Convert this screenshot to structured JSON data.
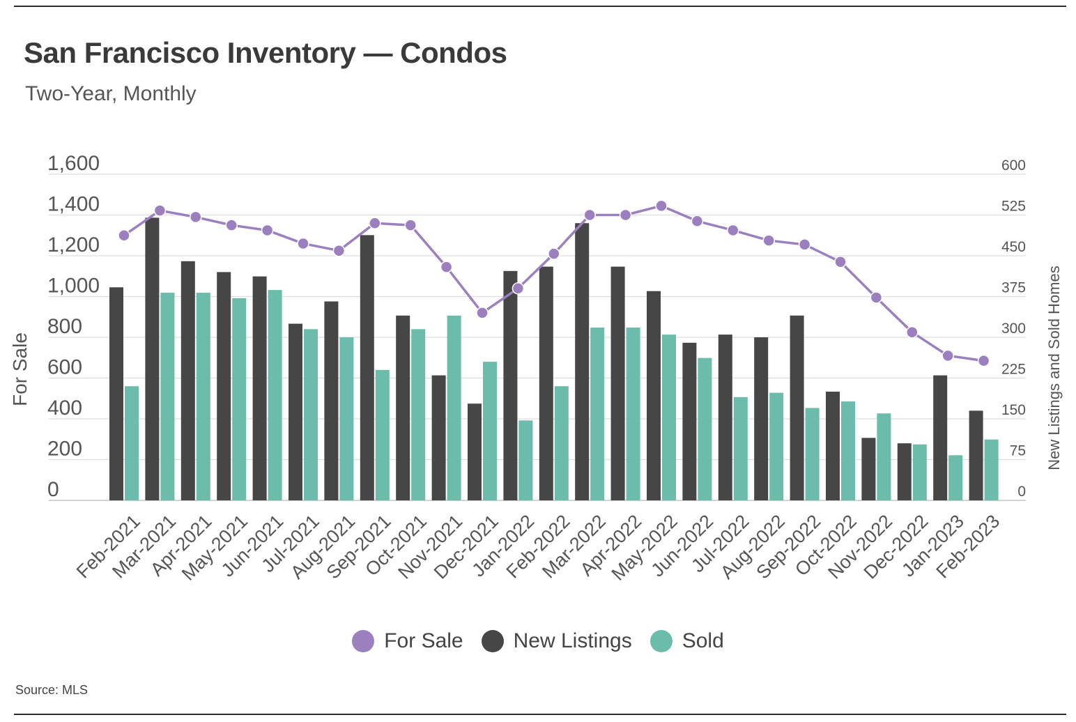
{
  "header": {
    "title": "San Francisco Inventory — Condos",
    "subtitle": "Two-Year, Monthly"
  },
  "footer": {
    "source": "Source:  MLS"
  },
  "colors": {
    "for_sale": "#9b7fbf",
    "new_listings": "#464646",
    "sold": "#6bbcab",
    "grid": "#dddddd",
    "axis_text": "#555555"
  },
  "chart_data": {
    "type": "bar",
    "title": "San Francisco Inventory — Condos",
    "subtitle": "Two-Year, Monthly",
    "categories": [
      "Feb-2021",
      "Mar-2021",
      "Apr-2021",
      "May-2021",
      "Jun-2021",
      "Jul-2021",
      "Aug-2021",
      "Sep-2021",
      "Oct-2021",
      "Nov-2021",
      "Dec-2021",
      "Jan-2022",
      "Feb-2022",
      "Mar-2022",
      "Apr-2022",
      "May-2022",
      "Jun-2022",
      "Jul-2022",
      "Aug-2022",
      "Sep-2022",
      "Oct-2022",
      "Nov-2022",
      "Dec-2022",
      "Jan-2023",
      "Feb-2023"
    ],
    "ylabel": "For Sale",
    "ylabel_right": "New Listings and Sold Homes",
    "ylim": [
      0,
      1600
    ],
    "yticks": [
      0,
      200,
      400,
      600,
      800,
      1000,
      1200,
      1400,
      1600
    ],
    "ytick_labels": [
      "0",
      "200",
      "400",
      "600",
      "800",
      "1,000",
      "1,200",
      "1,400",
      "1,600"
    ],
    "ylim_right": [
      0,
      600
    ],
    "yticks_right": [
      0,
      75,
      150,
      225,
      300,
      375,
      450,
      525,
      600
    ],
    "ytick_labels_right": [
      "0",
      "75",
      "150",
      "225",
      "300",
      "375",
      "450",
      "525",
      "600"
    ],
    "legend_position": "bottom-center",
    "series": [
      {
        "name": "For Sale",
        "kind": "line",
        "axis": "left",
        "values": [
          1300,
          1422,
          1390,
          1350,
          1325,
          1260,
          1225,
          1360,
          1350,
          1145,
          920,
          1040,
          1210,
          1400,
          1400,
          1445,
          1370,
          1325,
          1275,
          1255,
          1170,
          995,
          825,
          710,
          685
        ]
      },
      {
        "name": "New Listings",
        "kind": "bar",
        "axis": "right",
        "values": [
          392,
          520,
          440,
          420,
          412,
          325,
          366,
          488,
          340,
          230,
          178,
          422,
          430,
          510,
          430,
          385,
          290,
          305,
          300,
          340,
          200,
          115,
          105,
          230,
          165
        ]
      },
      {
        "name": "Sold",
        "kind": "bar",
        "axis": "right",
        "values": [
          210,
          382,
          382,
          372,
          387,
          315,
          300,
          240,
          315,
          340,
          255,
          147,
          210,
          318,
          318,
          305,
          262,
          190,
          198,
          170,
          182,
          160,
          103,
          83,
          112
        ]
      }
    ]
  }
}
